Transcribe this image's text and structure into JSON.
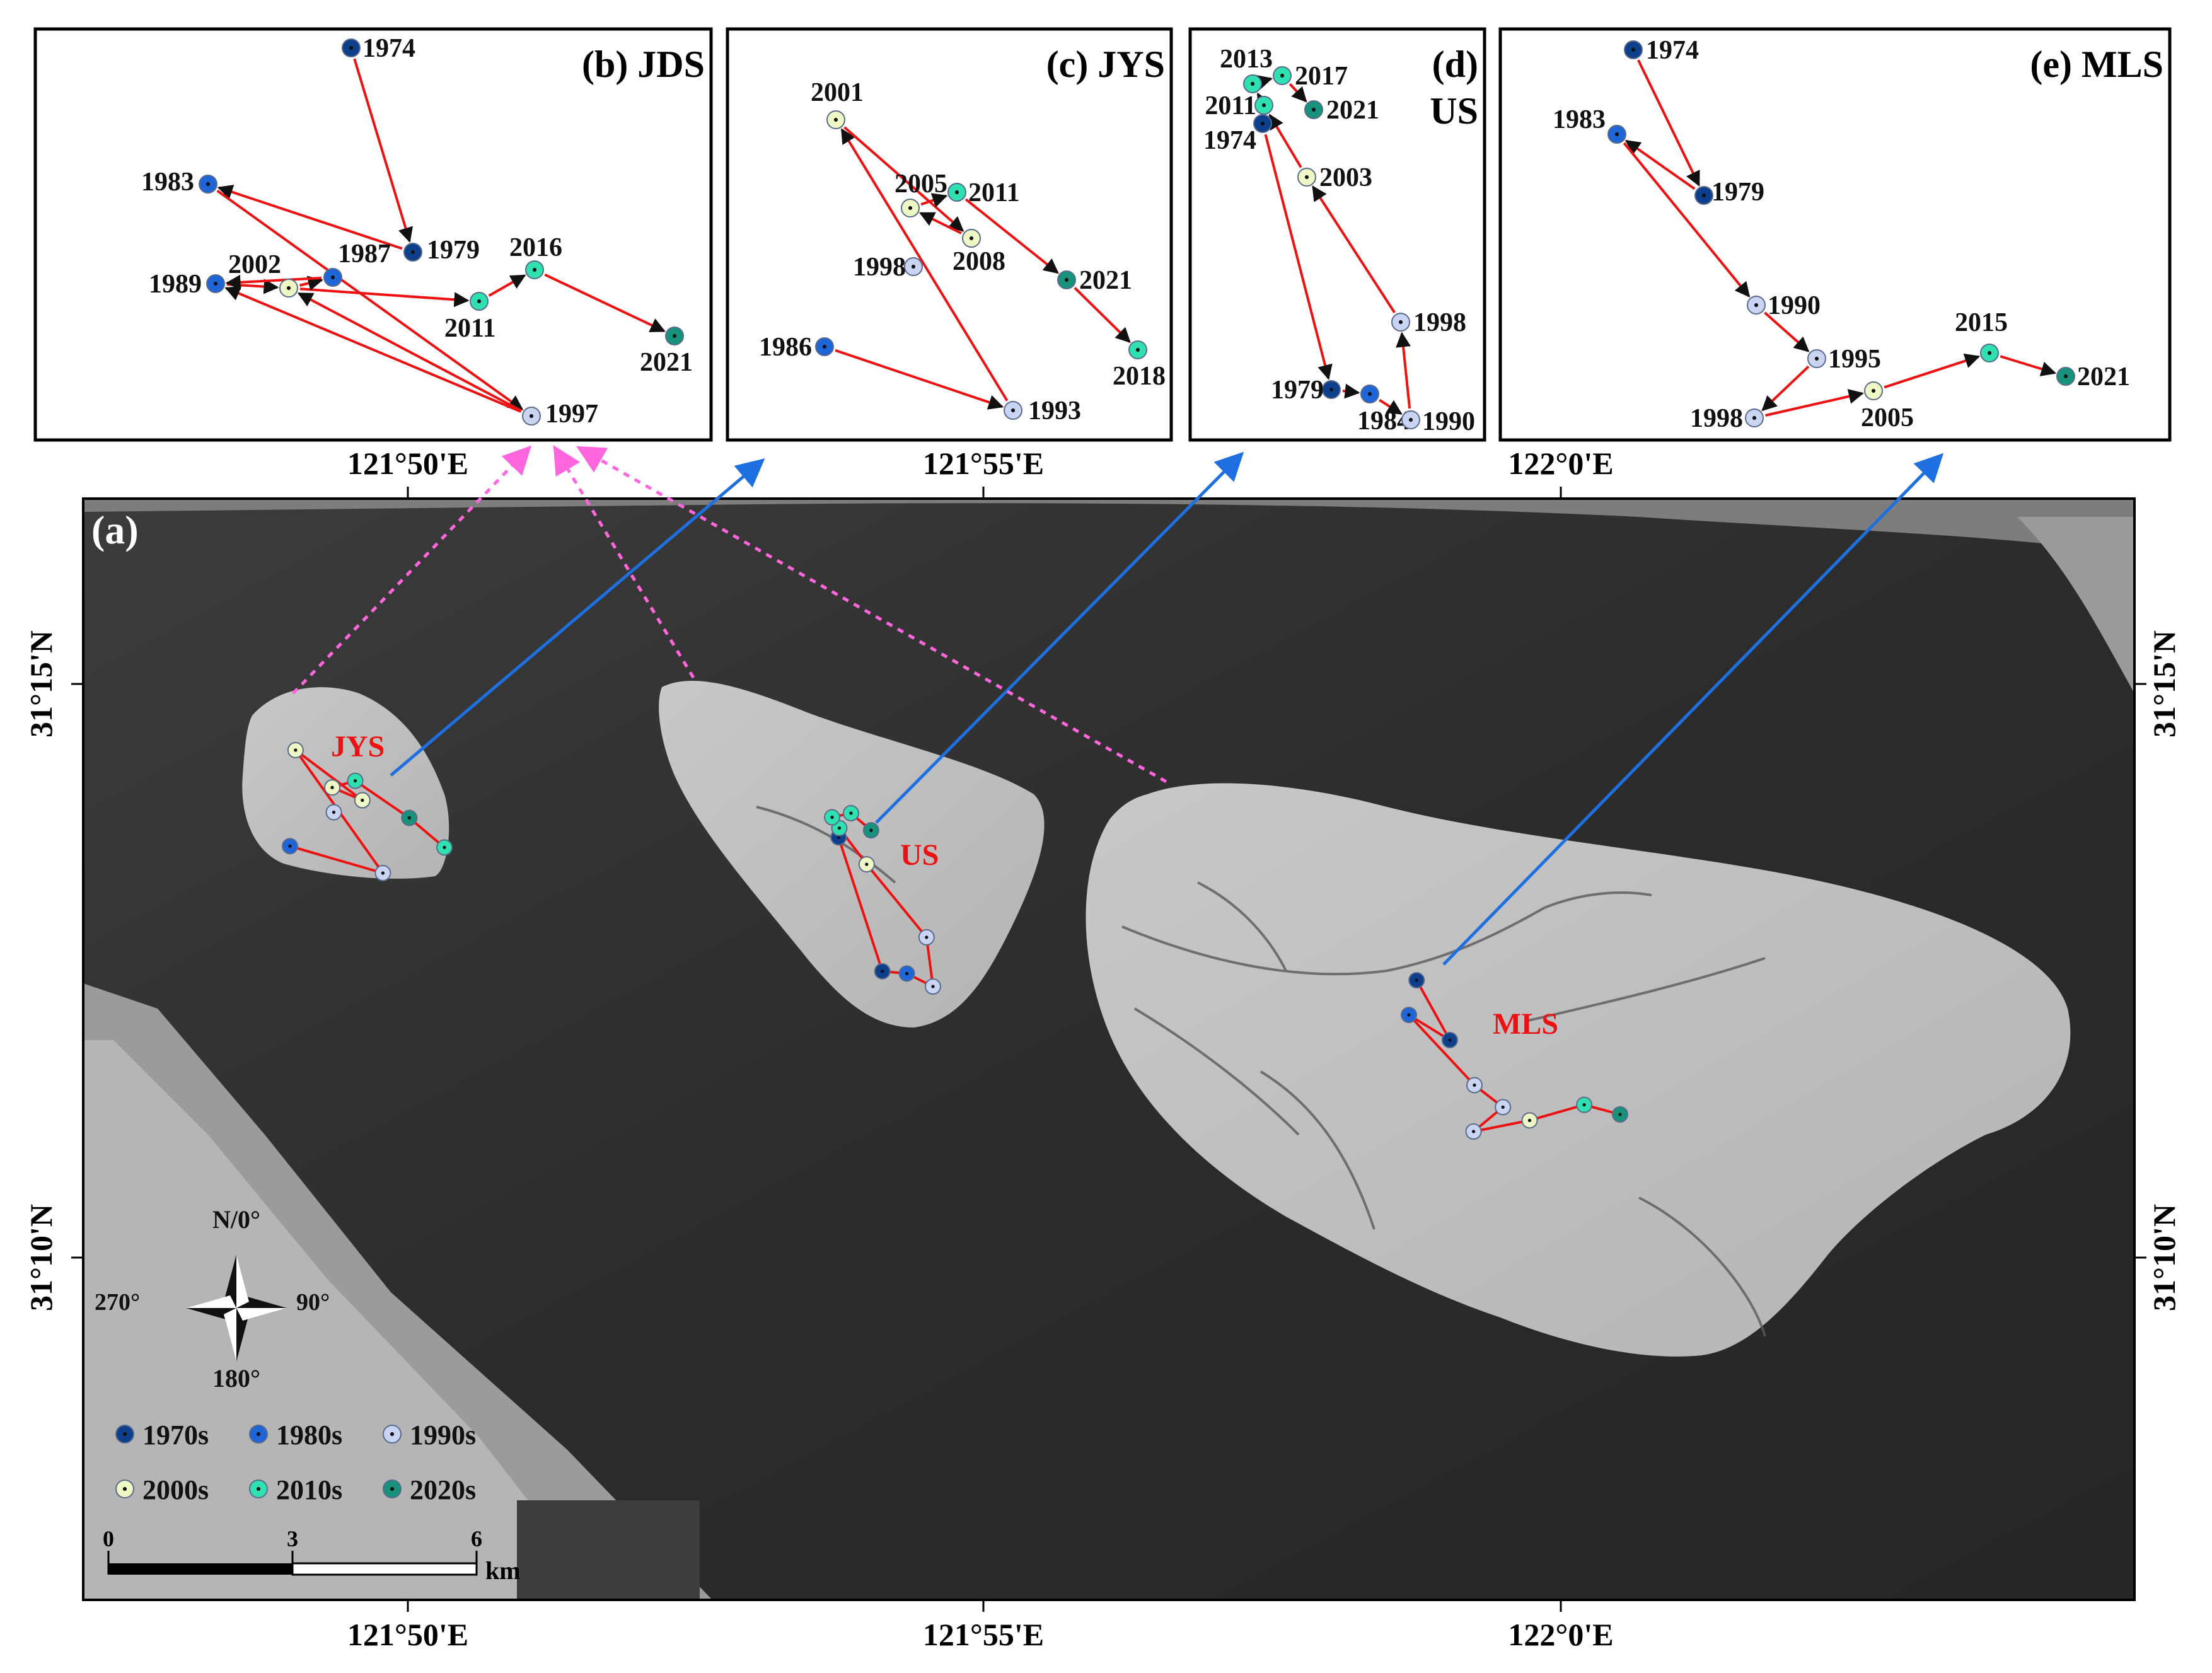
{
  "colors": {
    "1970s": "#0d3f8c",
    "1980s": "#1e66d8",
    "1990s": "#c9d3f2",
    "2000s": "#eef8c4",
    "2010s": "#2fe0b0",
    "2020s": "#16937a",
    "track": "#ee1111",
    "callout_blue": "#1e6fe0",
    "callout_pink": "#ff66dd",
    "island_label": "#ee1111",
    "water": "#2f2f2f",
    "land": "#c4c4c4"
  },
  "main_panel": {
    "label": "(a)",
    "top_ticks": [
      "121°50'E",
      "121°55'E",
      "122°0'E"
    ],
    "bottom_ticks": [
      "121°50'E",
      "121°55'E",
      "122°0'E"
    ],
    "left_ticks": [
      "31°15'N",
      "31°10'N"
    ],
    "right_ticks": [
      "31°15'N",
      "31°10'N"
    ],
    "island_labels": {
      "JYS": "JYS",
      "US": "US",
      "MLS": "MLS"
    },
    "compass": {
      "north": "N/0°",
      "east": "90°",
      "south": "180°",
      "west": "270°"
    },
    "scale_bar": {
      "ticks": [
        "0",
        "3",
        "6"
      ],
      "unit": "km"
    },
    "legend": [
      {
        "label": "1970s",
        "decade": "1970s"
      },
      {
        "label": "1980s",
        "decade": "1980s"
      },
      {
        "label": "1990s",
        "decade": "1990s"
      },
      {
        "label": "2000s",
        "decade": "2000s"
      },
      {
        "label": "2010s",
        "decade": "2010s"
      },
      {
        "label": "2020s",
        "decade": "2020s"
      }
    ]
  },
  "insets": {
    "b": {
      "title": "(b) JDS",
      "points": [
        {
          "year": "1974",
          "decade": "1970s"
        },
        {
          "year": "1979",
          "decade": "1970s"
        },
        {
          "year": "1983",
          "decade": "1980s"
        },
        {
          "year": "1987",
          "decade": "1980s"
        },
        {
          "year": "1989",
          "decade": "1980s"
        },
        {
          "year": "1997",
          "decade": "1990s"
        },
        {
          "year": "2002",
          "decade": "2000s"
        },
        {
          "year": "2011",
          "decade": "2010s"
        },
        {
          "year": "2016",
          "decade": "2010s"
        },
        {
          "year": "2021",
          "decade": "2020s"
        }
      ]
    },
    "c": {
      "title": "(c) JYS",
      "points": [
        {
          "year": "1986",
          "decade": "1980s"
        },
        {
          "year": "1993",
          "decade": "1990s"
        },
        {
          "year": "1998",
          "decade": "1990s"
        },
        {
          "year": "2001",
          "decade": "2000s"
        },
        {
          "year": "2005",
          "decade": "2000s"
        },
        {
          "year": "2008",
          "decade": "2000s"
        },
        {
          "year": "2011",
          "decade": "2010s"
        },
        {
          "year": "2018",
          "decade": "2010s"
        },
        {
          "year": "2021",
          "decade": "2020s"
        }
      ]
    },
    "d": {
      "title": "(d)",
      "title2": "US",
      "points": [
        {
          "year": "1974",
          "decade": "1970s"
        },
        {
          "year": "1979",
          "decade": "1970s"
        },
        {
          "year": "1984",
          "decade": "1980s"
        },
        {
          "year": "1990",
          "decade": "1990s"
        },
        {
          "year": "1998",
          "decade": "1990s"
        },
        {
          "year": "2003",
          "decade": "2000s"
        },
        {
          "year": "2011",
          "decade": "2010s"
        },
        {
          "year": "2013",
          "decade": "2010s"
        },
        {
          "year": "2017",
          "decade": "2010s"
        },
        {
          "year": "2021",
          "decade": "2020s"
        }
      ]
    },
    "e": {
      "title": "(e) MLS",
      "points": [
        {
          "year": "1974",
          "decade": "1970s"
        },
        {
          "year": "1979",
          "decade": "1970s"
        },
        {
          "year": "1983",
          "decade": "1980s"
        },
        {
          "year": "1990",
          "decade": "1990s"
        },
        {
          "year": "1995",
          "decade": "1990s"
        },
        {
          "year": "1998",
          "decade": "1990s"
        },
        {
          "year": "2005",
          "decade": "2000s"
        },
        {
          "year": "2015",
          "decade": "2010s"
        },
        {
          "year": "2021",
          "decade": "2020s"
        }
      ]
    }
  }
}
